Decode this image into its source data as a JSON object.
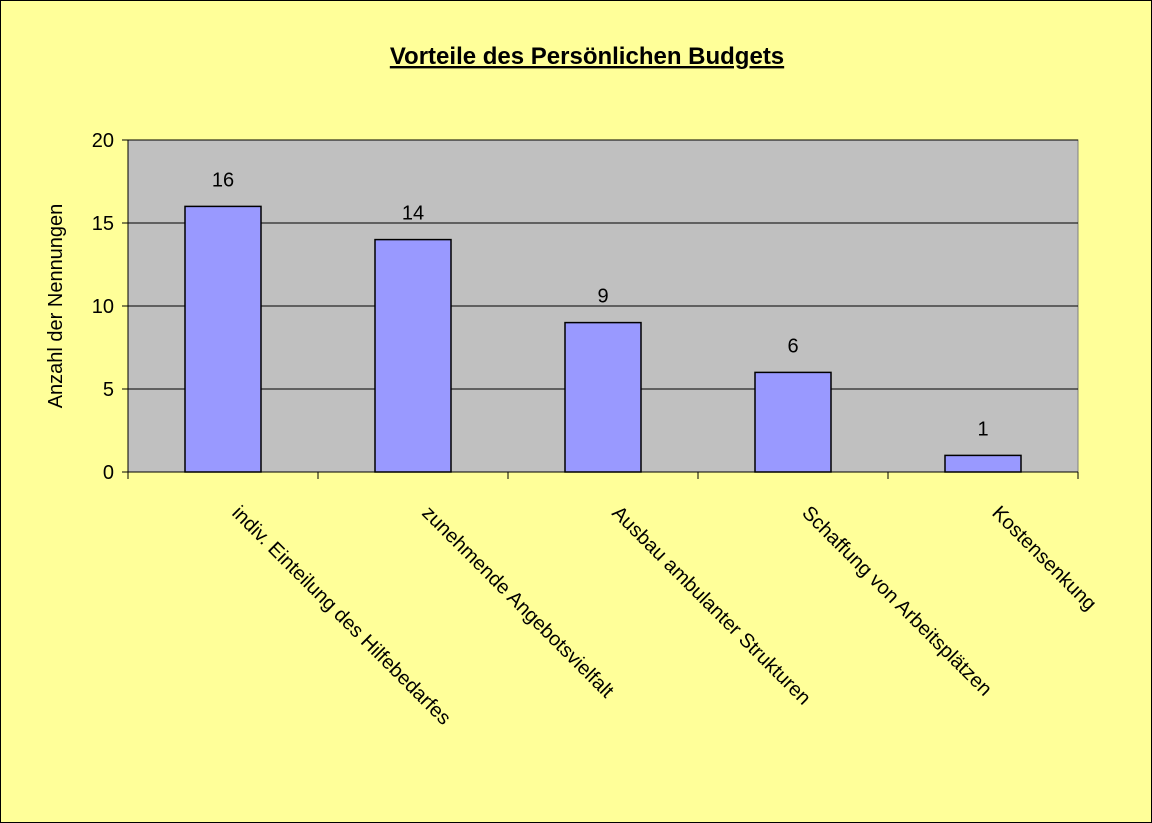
{
  "chart_data": {
    "type": "bar",
    "title": "Vorteile des Persönlichen Budgets",
    "y_label": "Anzahl der Nennungen",
    "categories": [
      "indiv. Einteilung des Hilfebedarfes",
      "zunehmende Angebotsvielfalt",
      "Ausbau ambulanter Strukturen",
      "Schaffung von Arbeitsplätzen",
      "Kostensenkung"
    ],
    "values": [
      16,
      14,
      9,
      6,
      1
    ],
    "color": "#9999ff",
    "ylim": [
      0,
      20
    ],
    "yticks": [
      0,
      5,
      10,
      15,
      20
    ],
    "grid": true
  }
}
